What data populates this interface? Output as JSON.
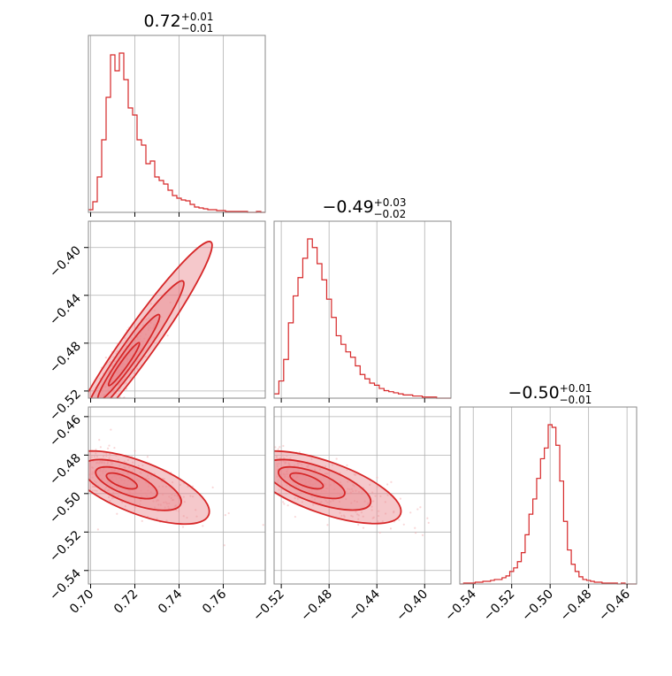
{
  "chart_data": {
    "type": "corner",
    "parameters": [
      {
        "title_main": "0.72",
        "title_sup": "+0.01",
        "title_sub": "−0.01",
        "range": [
          0.699,
          0.779
        ],
        "ticks": [
          0.7,
          0.72,
          0.74,
          0.76
        ],
        "tick_labels": [
          "0.70",
          "0.72",
          "0.74",
          "0.76"
        ],
        "hist_edges": [
          0.699,
          0.701,
          0.703,
          0.705,
          0.707,
          0.709,
          0.711,
          0.713,
          0.715,
          0.717,
          0.719,
          0.721,
          0.723,
          0.725,
          0.727,
          0.729,
          0.731,
          0.733,
          0.735,
          0.737,
          0.739,
          0.741,
          0.743,
          0.745,
          0.747,
          0.749,
          0.751,
          0.753,
          0.755,
          0.757,
          0.759,
          0.761,
          0.763,
          0.765,
          0.767,
          0.769,
          0.771,
          0.773,
          0.775,
          0.777,
          0.779
        ],
        "hist_counts": [
          3,
          12,
          40,
          82,
          130,
          178,
          160,
          180,
          150,
          118,
          110,
          82,
          76,
          55,
          58,
          40,
          36,
          32,
          25,
          19,
          16,
          14,
          13,
          9,
          6,
          5,
          4,
          3,
          3,
          2,
          2,
          1,
          1,
          1,
          1,
          1,
          0,
          0,
          1,
          0
        ]
      },
      {
        "title_main": "−0.49",
        "title_sup": "+0.03",
        "title_sub": "−0.02",
        "range": [
          -0.526,
          -0.378
        ],
        "ticks": [
          -0.52,
          -0.48,
          -0.44,
          -0.4
        ],
        "tick_labels": [
          "−0.52",
          "−0.48",
          "−0.44",
          "−0.40"
        ],
        "hist_edges": [
          -0.526,
          -0.522,
          -0.518,
          -0.514,
          -0.51,
          -0.506,
          -0.502,
          -0.498,
          -0.494,
          -0.49,
          -0.486,
          -0.482,
          -0.478,
          -0.474,
          -0.47,
          -0.466,
          -0.462,
          -0.458,
          -0.454,
          -0.45,
          -0.446,
          -0.442,
          -0.438,
          -0.434,
          -0.43,
          -0.426,
          -0.422,
          -0.418,
          -0.414,
          -0.41,
          -0.406,
          -0.402,
          -0.398,
          -0.394,
          -0.39,
          -0.386,
          -0.382,
          -0.378
        ],
        "hist_counts": [
          4,
          16,
          36,
          70,
          95,
          112,
          130,
          148,
          140,
          125,
          110,
          92,
          75,
          58,
          50,
          43,
          38,
          30,
          22,
          18,
          14,
          12,
          9,
          7,
          6,
          5,
          4,
          3,
          3,
          2,
          2,
          1,
          1,
          1,
          0,
          0,
          0
        ]
      },
      {
        "title_main": "−0.50",
        "title_sup": "+0.01",
        "title_sub": "−0.01",
        "range": [
          -0.547,
          -0.455
        ],
        "ticks": [
          -0.54,
          -0.52,
          -0.5,
          -0.48,
          -0.46
        ],
        "tick_labels": [
          "−0.54",
          "−0.52",
          "−0.50",
          "−0.48",
          "−0.46"
        ],
        "hist_edges": [
          -0.547,
          -0.545,
          -0.543,
          -0.541,
          -0.539,
          -0.537,
          -0.535,
          -0.533,
          -0.531,
          -0.529,
          -0.527,
          -0.525,
          -0.523,
          -0.521,
          -0.519,
          -0.517,
          -0.515,
          -0.513,
          -0.511,
          -0.509,
          -0.507,
          -0.505,
          -0.503,
          -0.501,
          -0.499,
          -0.497,
          -0.495,
          -0.493,
          -0.491,
          -0.489,
          -0.487,
          -0.485,
          -0.483,
          -0.481,
          -0.479,
          -0.477,
          -0.475,
          -0.473,
          -0.471,
          -0.469,
          -0.467,
          -0.465,
          -0.463,
          -0.461,
          -0.459,
          -0.457,
          -0.455
        ],
        "hist_counts": [
          0,
          1,
          1,
          1,
          2,
          2,
          3,
          3,
          4,
          5,
          5,
          7,
          9,
          14,
          18,
          25,
          35,
          55,
          78,
          95,
          118,
          140,
          152,
          178,
          175,
          155,
          115,
          70,
          38,
          22,
          14,
          8,
          5,
          4,
          3,
          2,
          2,
          1,
          1,
          1,
          1,
          0,
          1,
          0,
          0,
          0
        ]
      }
    ],
    "pairs": [
      {
        "x_param": 0,
        "y_param": 1,
        "center": [
          0.713,
          -0.503
        ],
        "slope": 2.6,
        "spread_along": 0.012,
        "spread_across": 0.0045
      },
      {
        "x_param": 0,
        "y_param": 2,
        "center": [
          0.712,
          -0.4925
        ],
        "slope": -0.45,
        "spread_along": 0.012,
        "spread_across": 0.0045
      },
      {
        "x_param": 1,
        "y_param": 2,
        "center": [
          -0.503,
          -0.4925
        ],
        "slope": -0.22,
        "spread_along": 0.024,
        "spread_across": 0.0045
      }
    ],
    "grid": true,
    "color": "#d62728"
  }
}
